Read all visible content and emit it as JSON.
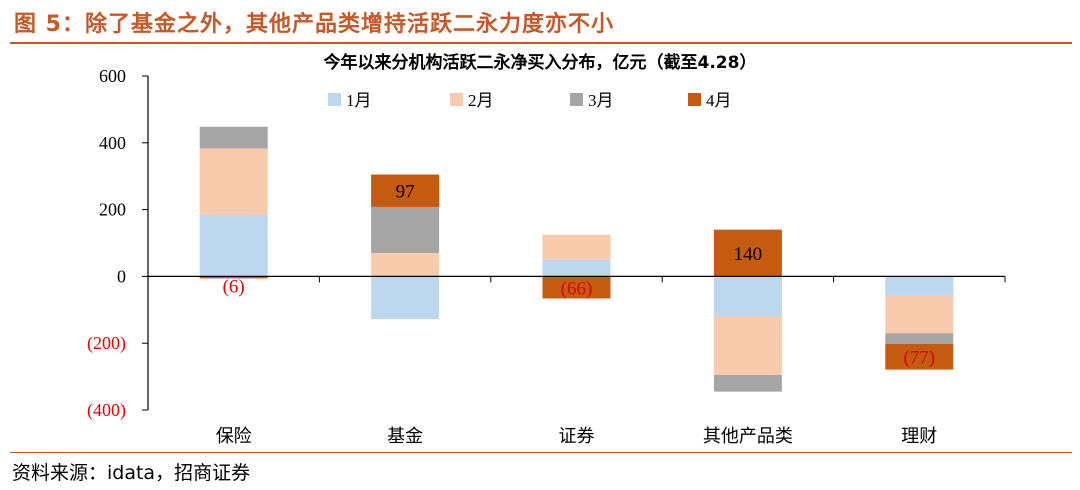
{
  "figure": {
    "title": "图 5：除了基金之外，其他产品类增持活跃二永力度亦不小",
    "source": "资料来源：idata，招商证券"
  },
  "colors": {
    "accent": "#c55a28",
    "negative_label": "#e00000",
    "series": [
      "#bdd7ee",
      "#f8cbad",
      "#a5a5a5",
      "#c55a11"
    ]
  },
  "chart_data": {
    "type": "bar",
    "stacked": true,
    "title": "今年以来分机构活跃二永净买入分布，亿元（截至4.28）",
    "categories": [
      "保险",
      "基金",
      "证券",
      "其他产品类",
      "理财"
    ],
    "series": [
      {
        "name": "1月",
        "values": [
          185,
          -128,
          50,
          -120,
          -58
        ]
      },
      {
        "name": "2月",
        "values": [
          198,
          70,
          75,
          -175,
          -112
        ]
      },
      {
        "name": "3月",
        "values": [
          65,
          138,
          0,
          -50,
          -32
        ]
      },
      {
        "name": "4月",
        "values": [
          -6,
          97,
          -66,
          140,
          -77
        ]
      }
    ],
    "data_labels": [
      {
        "category": "保险",
        "series": "4月",
        "text": "(6)",
        "negative": true
      },
      {
        "category": "基金",
        "series": "4月",
        "text": "97",
        "negative": false
      },
      {
        "category": "证券",
        "series": "4月",
        "text": "(66)",
        "negative": true
      },
      {
        "category": "其他产品类",
        "series": "4月",
        "text": "140",
        "negative": false
      },
      {
        "category": "理财",
        "series": "4月",
        "text": "(77)",
        "negative": true
      }
    ],
    "ylim": [
      -400,
      600
    ],
    "yticks": [
      600,
      400,
      200,
      0,
      -200,
      -400
    ],
    "ytick_labels": [
      "600",
      "400",
      "200",
      "0",
      "(200)",
      "(400)"
    ],
    "legend_position": "top",
    "grid": false
  }
}
